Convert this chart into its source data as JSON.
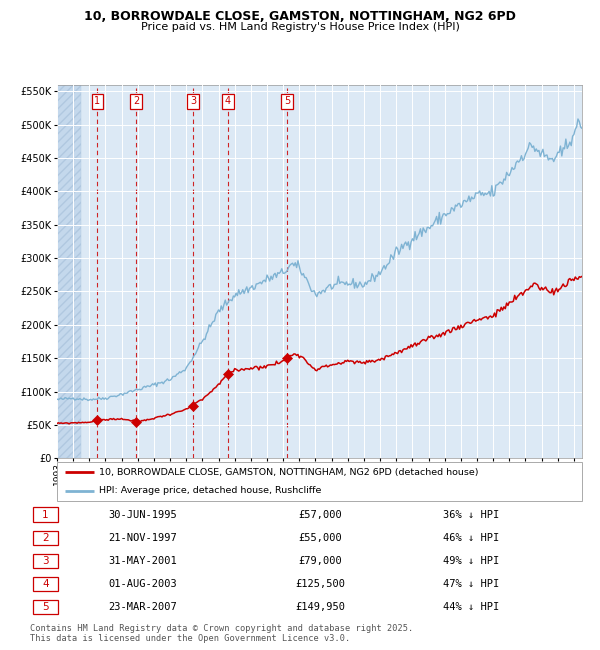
{
  "title_line1": "10, BORROWDALE CLOSE, GAMSTON, NOTTINGHAM, NG2 6PD",
  "title_line2": "Price paid vs. HM Land Registry's House Price Index (HPI)",
  "background_color": "#dce9f5",
  "grid_color": "#ffffff",
  "hpi_color": "#7fb3d3",
  "price_color": "#cc0000",
  "sale_prices": [
    57000,
    55000,
    79000,
    125500,
    149950
  ],
  "sale_date_decimals": [
    1995.5,
    1997.9,
    2001.42,
    2003.58,
    2007.23
  ],
  "sale_labels": [
    "1",
    "2",
    "3",
    "4",
    "5"
  ],
  "sale_info": [
    {
      "num": "1",
      "date": "30-JUN-1995",
      "price": "£57,000",
      "pct": "36% ↓ HPI"
    },
    {
      "num": "2",
      "date": "21-NOV-1997",
      "price": "£55,000",
      "pct": "46% ↓ HPI"
    },
    {
      "num": "3",
      "date": "31-MAY-2001",
      "price": "£79,000",
      "pct": "49% ↓ HPI"
    },
    {
      "num": "4",
      "date": "01-AUG-2003",
      "price": "£125,500",
      "pct": "47% ↓ HPI"
    },
    {
      "num": "5",
      "date": "23-MAR-2007",
      "price": "£149,950",
      "pct": "44% ↓ HPI"
    }
  ],
  "legend_line1": "10, BORROWDALE CLOSE, GAMSTON, NOTTINGHAM, NG2 6PD (detached house)",
  "legend_line2": "HPI: Average price, detached house, Rushcliffe",
  "footer": "Contains HM Land Registry data © Crown copyright and database right 2025.\nThis data is licensed under the Open Government Licence v3.0.",
  "ylim_max": 560000,
  "xlim_min": 1993.0,
  "xlim_max": 2025.5,
  "hpi_anchors": {
    "1993.0": 88000,
    "1994.0": 90000,
    "1995.0": 88000,
    "1996.0": 90000,
    "1997.0": 96000,
    "1998.0": 103000,
    "1999.0": 110000,
    "2000.0": 118000,
    "2001.0": 135000,
    "2002.0": 175000,
    "2003.0": 220000,
    "2004.0": 245000,
    "2005.0": 255000,
    "2006.0": 268000,
    "2007.0": 278000,
    "2007.5": 290000,
    "2008.0": 285000,
    "2009.0": 245000,
    "2010.0": 258000,
    "2011.0": 262000,
    "2012.0": 260000,
    "2013.0": 278000,
    "2014.0": 308000,
    "2015.0": 330000,
    "2016.0": 345000,
    "2017.0": 365000,
    "2018.0": 380000,
    "2019.0": 393000,
    "2020.0": 398000,
    "2021.0": 428000,
    "2022.0": 460000,
    "2022.5": 468000,
    "2023.0": 455000,
    "2023.5": 448000,
    "2024.0": 450000,
    "2024.5": 465000,
    "2025.0": 490000,
    "2025.4": 500000
  },
  "price_anchors": {
    "1993.0": 52000,
    "1994.0": 53000,
    "1995.0": 54000,
    "1995.5": 57000,
    "1996.0": 58000,
    "1997.0": 59000,
    "1997.9": 55000,
    "1998.5": 57000,
    "1999.0": 60000,
    "2000.0": 66000,
    "2001.0": 73000,
    "2001.42": 79000,
    "2002.0": 88000,
    "2003.0": 110000,
    "2003.58": 125500,
    "2004.0": 132000,
    "2005.0": 135000,
    "2006.0": 138000,
    "2007.0": 145000,
    "2007.23": 149950,
    "2007.8": 158000,
    "2008.0": 155000,
    "2009.0": 133000,
    "2010.0": 140000,
    "2011.0": 145000,
    "2012.0": 143000,
    "2013.0": 148000,
    "2014.0": 158000,
    "2015.0": 168000,
    "2016.0": 178000,
    "2017.0": 188000,
    "2018.0": 198000,
    "2019.0": 208000,
    "2020.0": 213000,
    "2021.0": 232000,
    "2022.0": 250000,
    "2022.5": 262000,
    "2023.0": 255000,
    "2023.5": 250000,
    "2024.0": 252000,
    "2024.5": 260000,
    "2025.0": 268000,
    "2025.4": 272000
  }
}
